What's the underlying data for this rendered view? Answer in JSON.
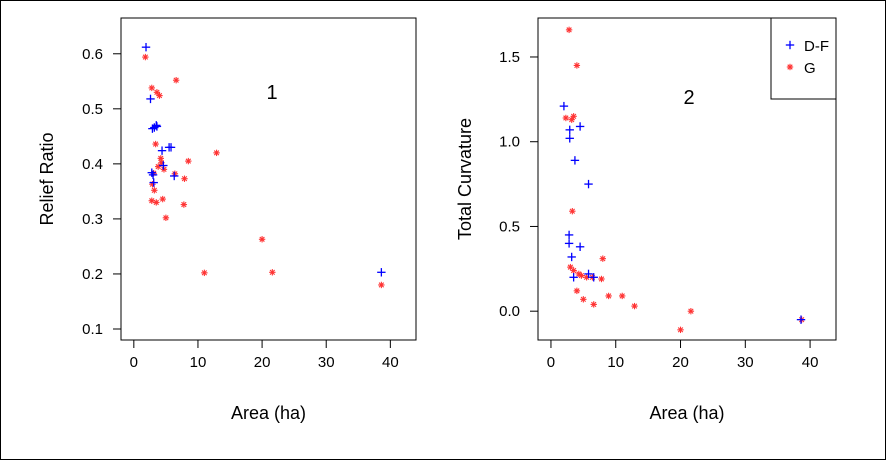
{
  "chart_data": [
    {
      "type": "scatter",
      "panel_label": "1",
      "xlabel": "Area (ha)",
      "ylabel": "Relief Ratio",
      "xlim": [
        -2,
        44
      ],
      "ylim": [
        0.08,
        0.665
      ],
      "xticks": [
        0,
        10,
        20,
        30,
        40
      ],
      "yticks": [
        0.1,
        0.2,
        0.3,
        0.4,
        0.5,
        0.6
      ],
      "ytick_labels": [
        "0.1",
        "0.2",
        "0.3",
        "0.4",
        "0.5",
        "0.6"
      ],
      "series": [
        {
          "name": "D-F",
          "marker": "plus",
          "color": "#0000ff",
          "x": [
            1.9,
            2.6,
            2.9,
            3.2,
            3.5,
            3.6,
            2.8,
            3.0,
            3.1,
            4.4,
            4.6,
            5.5,
            5.8,
            6.3,
            38.6
          ],
          "y": [
            0.612,
            0.518,
            0.464,
            0.466,
            0.47,
            0.468,
            0.384,
            0.38,
            0.366,
            0.424,
            0.397,
            0.43,
            0.43,
            0.378,
            0.203
          ]
        },
        {
          "name": "G",
          "marker": "asterisk",
          "color": "#ff3333",
          "x": [
            1.8,
            2.8,
            3.6,
            6.6,
            4.0,
            3.4,
            4.2,
            4.3,
            4.7,
            3.8,
            3.1,
            2.9,
            3.2,
            2.8,
            3.5,
            4.5,
            5.0,
            6.4,
            7.9,
            8.5,
            7.8,
            12.9,
            11.0,
            20.0,
            21.6,
            38.6
          ],
          "y": [
            0.594,
            0.538,
            0.53,
            0.552,
            0.524,
            0.436,
            0.41,
            0.402,
            0.39,
            0.395,
            0.383,
            0.363,
            0.352,
            0.333,
            0.33,
            0.336,
            0.302,
            0.382,
            0.373,
            0.405,
            0.326,
            0.42,
            0.202,
            0.263,
            0.203,
            0.18
          ]
        }
      ]
    },
    {
      "type": "scatter",
      "panel_label": "2",
      "xlabel": "Area (ha)",
      "ylabel": "Total Curvature",
      "xlim": [
        -2,
        44
      ],
      "ylim": [
        -0.17,
        1.73
      ],
      "xticks": [
        0,
        10,
        20,
        30,
        40
      ],
      "yticks": [
        0.0,
        0.5,
        1.0,
        1.5
      ],
      "ytick_labels": [
        "0.0",
        "0.5",
        "1.0",
        "1.5"
      ],
      "legend": {
        "position": "top-right",
        "entries": [
          {
            "label": "D-F",
            "marker": "plus",
            "color": "#0000ff"
          },
          {
            "label": "G",
            "marker": "asterisk",
            "color": "#ff3333"
          }
        ]
      },
      "series": [
        {
          "name": "D-F",
          "marker": "plus",
          "color": "#0000ff",
          "x": [
            2.0,
            2.9,
            2.9,
            4.5,
            3.7,
            5.8,
            2.8,
            2.8,
            4.5,
            3.2,
            3.5,
            5.8,
            6.6,
            38.6
          ],
          "y": [
            1.21,
            1.07,
            1.02,
            1.09,
            0.89,
            0.75,
            0.45,
            0.4,
            0.38,
            0.32,
            0.2,
            0.22,
            0.2,
            -0.05
          ]
        },
        {
          "name": "G",
          "marker": "asterisk",
          "color": "#ff3333",
          "x": [
            2.8,
            4.0,
            3.5,
            3.2,
            2.3,
            3.3,
            8.0,
            3.0,
            3.5,
            4.3,
            4.7,
            5.5,
            6.4,
            7.8,
            4.0,
            5.0,
            6.6,
            8.9,
            11.0,
            12.9,
            20.0,
            21.6,
            38.7
          ],
          "y": [
            1.66,
            1.45,
            1.15,
            1.13,
            1.14,
            0.59,
            0.31,
            0.26,
            0.24,
            0.22,
            0.21,
            0.2,
            0.2,
            0.19,
            0.12,
            0.07,
            0.04,
            0.09,
            0.09,
            0.03,
            -0.11,
            0.0,
            -0.05
          ]
        }
      ]
    }
  ]
}
